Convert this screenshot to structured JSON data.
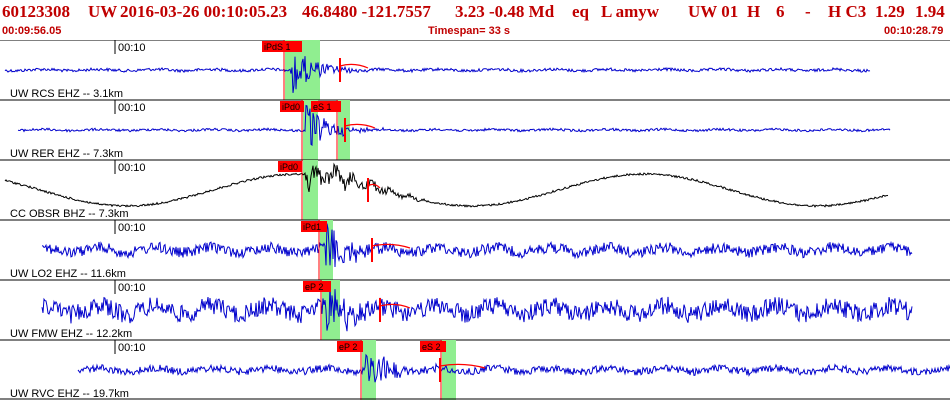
{
  "header": {
    "event_id": "60123308",
    "network": "UW",
    "datetime": "2016-03-26 00:10:05.23",
    "latlon": "46.8480 -121.7557",
    "depth_mag": "3.23 -0.48 Md",
    "type": "eq",
    "flags": "L amyw",
    "region": "UW 01",
    "quality": "H",
    "count": "6",
    "dash": "-",
    "class": "H C3",
    "val1": "1.29",
    "val2": "1.94",
    "start_time": "00:09:56.05",
    "timespan": "Timespan=  33 s",
    "end_time": "00:10:28.79"
  },
  "colors": {
    "header_text": "#c00000",
    "trace_blue": "#0000cc",
    "trace_black": "#000000",
    "pick_red": "#ff0000",
    "window_green": "#90ee90",
    "separator": "#000000"
  },
  "traces": [
    {
      "label": "UW RCS EHZ -- 3.1km",
      "tick_label": "00:10",
      "color": "blue",
      "picks": [
        {
          "label": "iPdS 1"
        }
      ],
      "amp": 0.12,
      "noise_only": false
    },
    {
      "label": "UW RER EHZ -- 7.3km",
      "tick_label": "00:10",
      "color": "blue",
      "picks": [
        {
          "label": "iPd0"
        },
        {
          "label": "eS 1"
        }
      ],
      "amp": 0.1,
      "noise_only": false
    },
    {
      "label": "CC OBSR BHZ -- 7.3km",
      "tick_label": "00:10",
      "color": "black",
      "picks": [
        {
          "label": "iPd0"
        }
      ],
      "amp": 0.2,
      "noise_only": false
    },
    {
      "label": "UW LO2 EHZ -- 11.6km",
      "tick_label": "00:10",
      "color": "blue",
      "picks": [
        {
          "label": "iPd1"
        }
      ],
      "amp": 0.45,
      "noise_only": false
    },
    {
      "label": "UW FMW EHZ -- 12.2km",
      "tick_label": "00:10",
      "color": "blue",
      "picks": [
        {
          "label": "eP 2"
        }
      ],
      "amp": 0.75,
      "noise_only": false
    },
    {
      "label": "UW RVC EHZ -- 19.7km",
      "tick_label": "00:10",
      "color": "blue",
      "picks": [
        {
          "label": "eP 2"
        },
        {
          "label": "eS 2"
        }
      ],
      "amp": 0.3,
      "noise_only": false
    }
  ]
}
